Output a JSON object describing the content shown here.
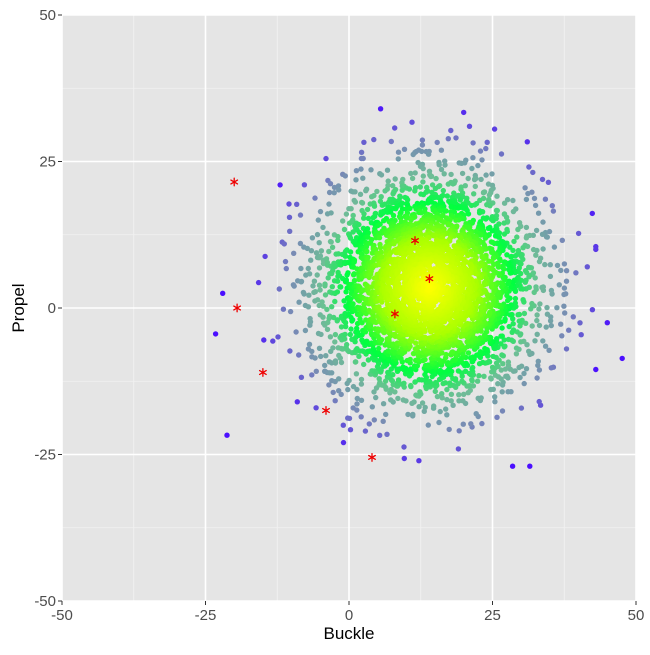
{
  "chart_data": {
    "type": "scatter",
    "title": "",
    "xlabel": "Buckle",
    "ylabel": "Propel",
    "xlim": [
      -50,
      50
    ],
    "ylim": [
      -50,
      50
    ],
    "x_ticks": [
      -50,
      -25,
      0,
      25,
      50
    ],
    "y_ticks": [
      -50,
      -25,
      0,
      25,
      50
    ],
    "x_tick_labels": [
      "-50",
      "-25",
      "0",
      "25",
      "50"
    ],
    "y_tick_labels": [
      "-50",
      "-25",
      "0",
      "25",
      "50"
    ],
    "grid": true,
    "legend": "none",
    "colors": {
      "panel_background": "#e5e5e5",
      "grid_major": "#ffffff",
      "grid_minor": "#f2f2f2",
      "density_high": "#ffff00",
      "density_mid": "#00ff40",
      "density_low": "#4b0fff",
      "outlier": "#ee0000"
    },
    "series": [
      {
        "marker": "dot",
        "color_scale": "local density (yellow high → green → blue low)",
        "distribution": {
          "type": "bivariate normal",
          "center": [
            14,
            3.5
          ],
          "sd": [
            9,
            9
          ],
          "n": 4000
        },
        "sample_points": [
          {
            "x": 5.5,
            "y": 34
          },
          {
            "x": 21,
            "y": 31
          },
          {
            "x": -4,
            "y": 25.5
          },
          {
            "x": -12,
            "y": 21
          },
          {
            "x": -22,
            "y": 2.5
          },
          {
            "x": 43,
            "y": 10
          },
          {
            "x": 45,
            "y": -2.5
          },
          {
            "x": 43,
            "y": -10.5
          },
          {
            "x": 28.5,
            "y": -27
          },
          {
            "x": 31.5,
            "y": -27
          },
          {
            "x": -9,
            "y": -16
          },
          {
            "x": -1,
            "y": -20
          }
        ]
      },
      {
        "marker": "asterisk",
        "color": "#ee0000",
        "points": [
          {
            "x": -20,
            "y": 21.5
          },
          {
            "x": -19.5,
            "y": 0
          },
          {
            "x": -15,
            "y": -11
          },
          {
            "x": -4,
            "y": -17.5
          },
          {
            "x": 4,
            "y": -25.5
          },
          {
            "x": 8,
            "y": -1
          },
          {
            "x": 11.5,
            "y": 11.5
          },
          {
            "x": 14,
            "y": 5
          }
        ]
      }
    ]
  }
}
